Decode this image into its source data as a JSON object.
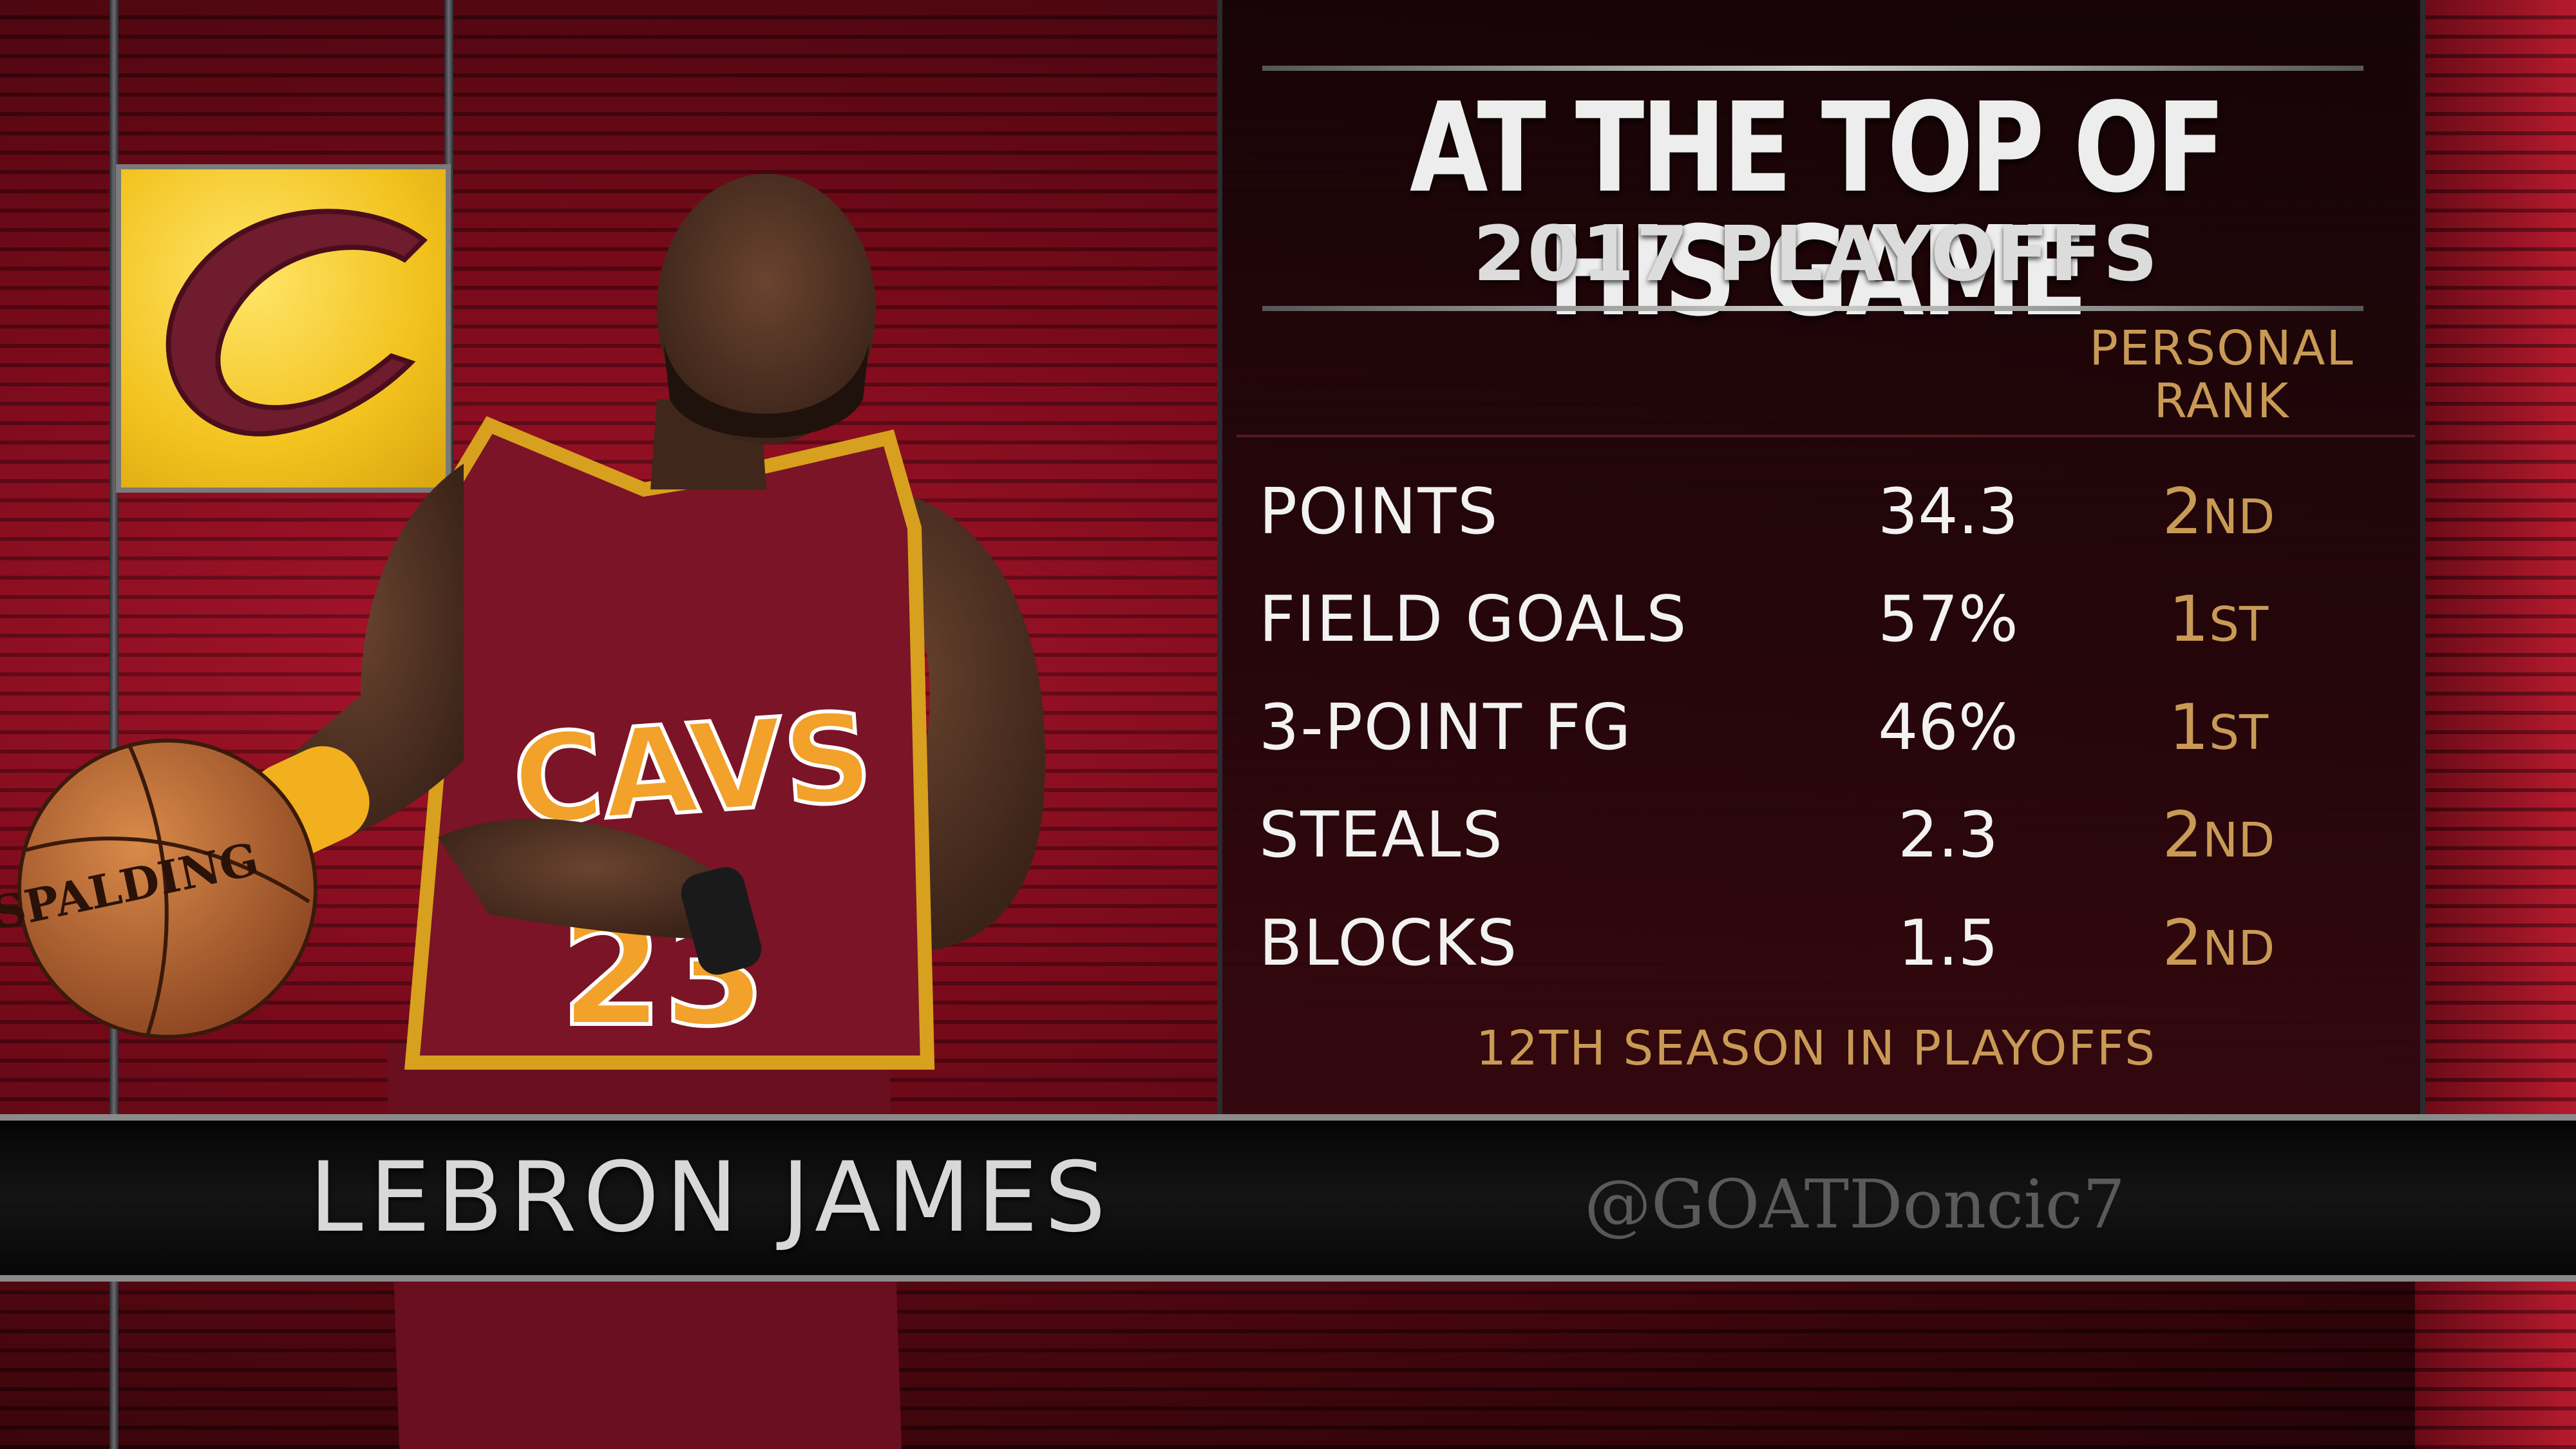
{
  "graphic": {
    "title": "AT THE TOP OF HIS GAME",
    "subtitle": "2017 PLAYOFFS",
    "column_header": "PERSONAL RANK",
    "stats": [
      {
        "label": "POINTS",
        "value": "34.3",
        "rank_num": "2",
        "rank_suffix": "ND"
      },
      {
        "label": "FIELD GOALS",
        "value": "57%",
        "rank_num": "1",
        "rank_suffix": "ST"
      },
      {
        "label": "3-POINT FG",
        "value": "46%",
        "rank_num": "1",
        "rank_suffix": "ST"
      },
      {
        "label": "STEALS",
        "value": "2.3",
        "rank_num": "2",
        "rank_suffix": "ND"
      },
      {
        "label": "BLOCKS",
        "value": "1.5",
        "rank_num": "2",
        "rank_suffix": "ND"
      }
    ],
    "footnote": "12TH SEASON IN PLAYOFFS"
  },
  "player": {
    "name": "LEBRON JAMES",
    "jersey_text": "CAVS",
    "jersey_number": "23",
    "ball_brand": "SPALDING"
  },
  "team_logo": {
    "icon": "cavaliers-c-logo"
  },
  "watermark": "@GOATDoncic7",
  "colors": {
    "background_red": "#8e1024",
    "accent_gold": "#c89a55",
    "logo_yellow": "#f2c21e",
    "logo_wine": "#6e1c2e",
    "jersey_wine": "#7a1426"
  }
}
